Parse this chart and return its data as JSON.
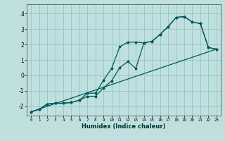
{
  "xlabel": "Humidex (Indice chaleur)",
  "background_color": "#c0e0e0",
  "grid_color": "#98c8c8",
  "line_color": "#005858",
  "xlim": [
    -0.5,
    23.5
  ],
  "ylim": [
    -2.6,
    4.6
  ],
  "yticks": [
    -2,
    -1,
    0,
    1,
    2,
    3,
    4
  ],
  "xticks": [
    0,
    1,
    2,
    3,
    4,
    5,
    6,
    7,
    8,
    9,
    10,
    11,
    12,
    13,
    14,
    15,
    16,
    17,
    18,
    19,
    20,
    21,
    22,
    23
  ],
  "line1_x": [
    0,
    1,
    2,
    3,
    4,
    5,
    6,
    7,
    8,
    9,
    10,
    11,
    12,
    13,
    14,
    15,
    16,
    17,
    18,
    19,
    20,
    21,
    22,
    23
  ],
  "line1_y": [
    -2.35,
    -2.2,
    -1.85,
    -1.8,
    -1.8,
    -1.75,
    -1.6,
    -1.15,
    -1.15,
    -0.3,
    0.45,
    1.85,
    2.15,
    2.15,
    2.1,
    2.2,
    2.65,
    3.15,
    3.75,
    3.8,
    3.45,
    3.35,
    1.8,
    1.7
  ],
  "line2_x": [
    0,
    1,
    2,
    3,
    4,
    5,
    6,
    7,
    8,
    9,
    10,
    11,
    12,
    13,
    14,
    15,
    16,
    17,
    18,
    19,
    20,
    21,
    22,
    23
  ],
  "line2_y": [
    -2.35,
    -2.2,
    -1.85,
    -1.8,
    -1.8,
    -1.75,
    -1.6,
    -1.35,
    -1.35,
    -0.8,
    -0.35,
    0.5,
    0.9,
    0.45,
    2.1,
    2.2,
    2.65,
    3.15,
    3.75,
    3.8,
    3.45,
    3.35,
    1.8,
    1.7
  ],
  "line3_x": [
    0,
    23
  ],
  "line3_y": [
    -2.35,
    1.7
  ]
}
